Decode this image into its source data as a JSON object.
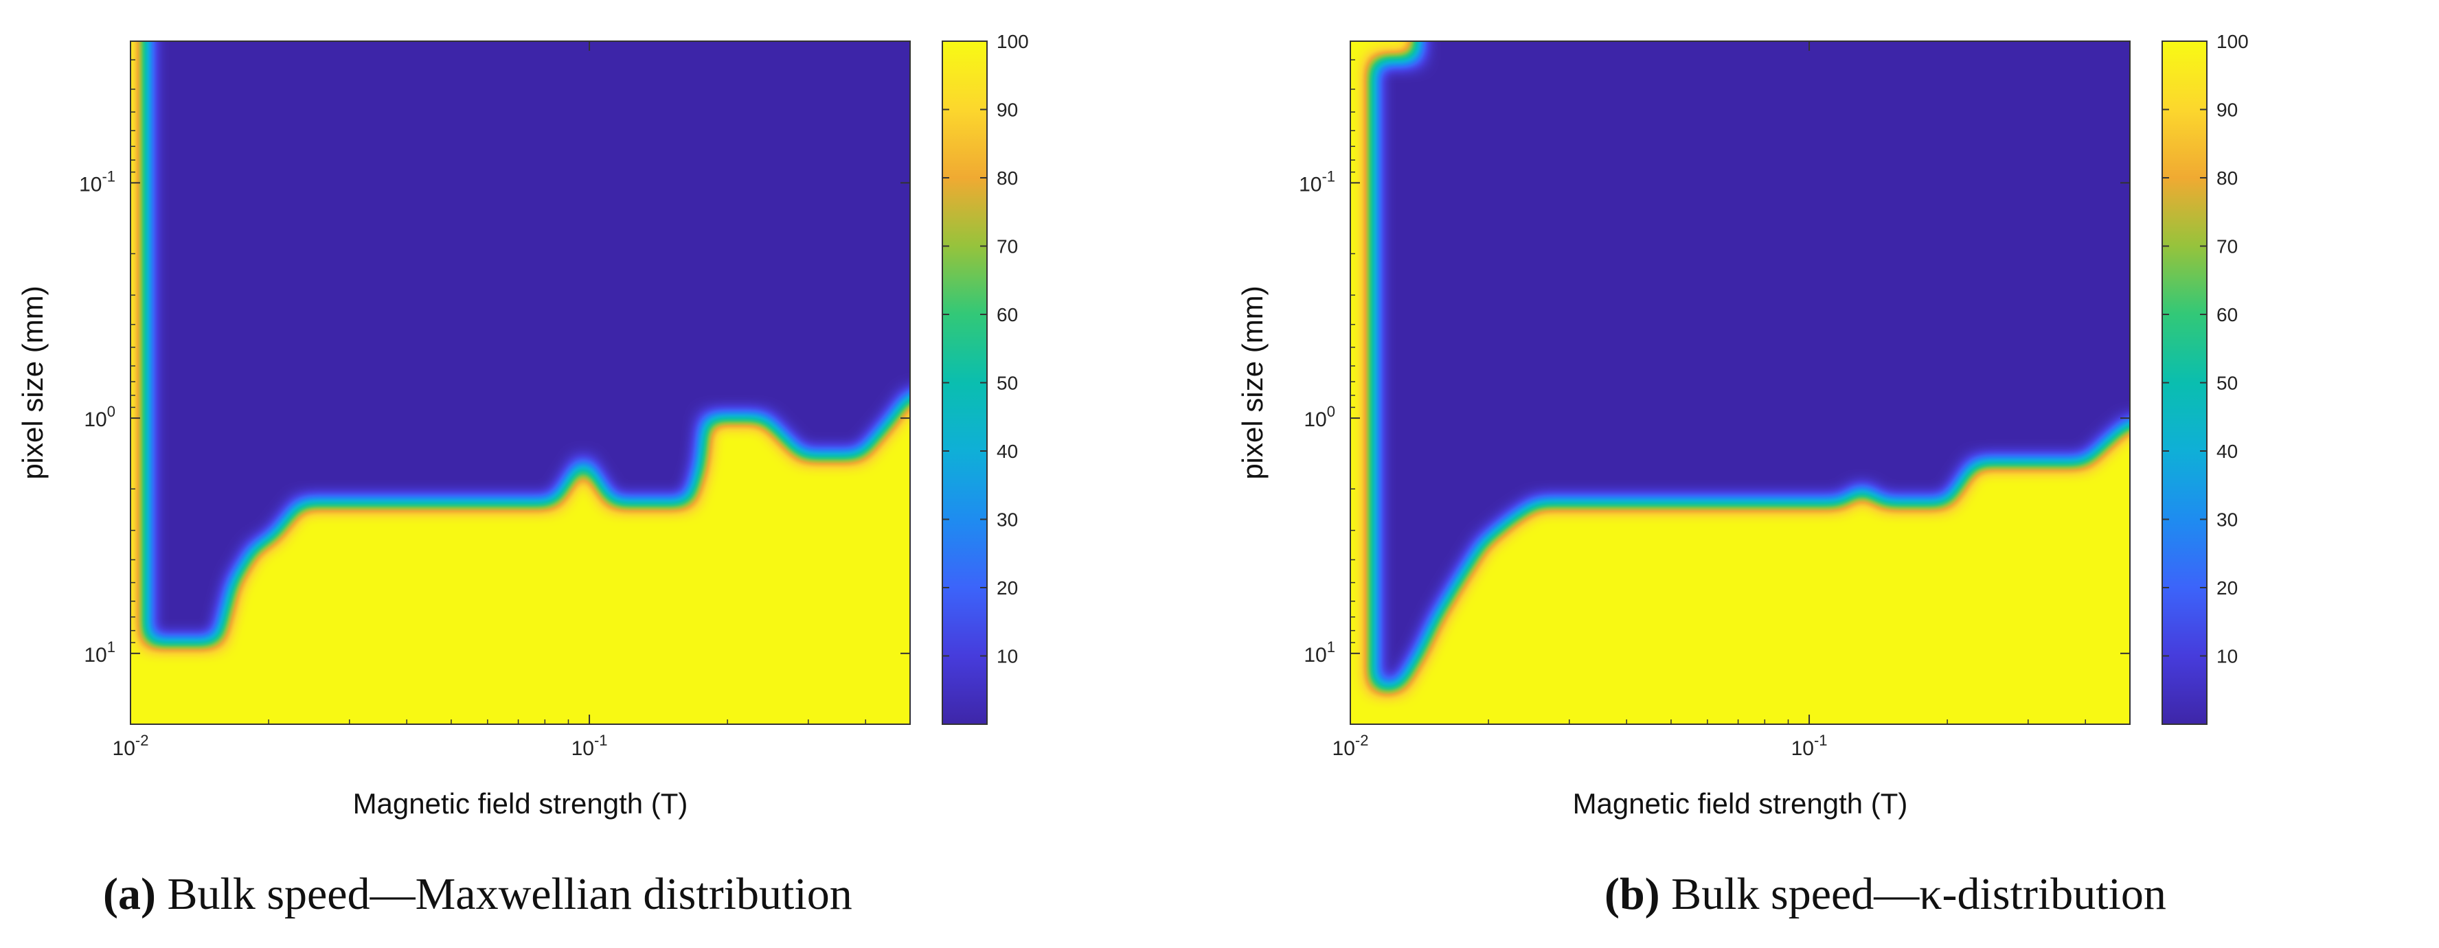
{
  "chart_data": [
    {
      "type": "heatmap",
      "panel_label": "(a)",
      "caption": "Bulk speed—Maxwellian distribution",
      "xlabel": "Magnetic field strength (T)",
      "ylabel": "pixel size (mm)",
      "xscale": "log",
      "yscale": "log",
      "yaxis_inverted": true,
      "xlim": [
        0.01,
        0.5
      ],
      "ylim": [
        0.025,
        20
      ],
      "x_ticks": [
        {
          "value": 0.01,
          "base": "10",
          "exp": "-2"
        },
        {
          "value": 0.1,
          "base": "10",
          "exp": "-1"
        }
      ],
      "y_ticks": [
        {
          "value": 0.1,
          "base": "10",
          "exp": "-1"
        },
        {
          "value": 1,
          "base": "10",
          "exp": "0"
        },
        {
          "value": 10,
          "base": "10",
          "exp": "1"
        }
      ],
      "colorbar": {
        "min": 0,
        "max": 100,
        "ticks": [
          10,
          20,
          30,
          40,
          50,
          60,
          70,
          80,
          90,
          100
        ],
        "colormap": "parula"
      },
      "region_high_value": 100,
      "region_low_value": 0,
      "boundary": {
        "description": "cells at or below the boundary pixel size (and the left edge column) equal 100, above equal 0",
        "left_edge_x": 0.0108,
        "points": [
          {
            "x": 0.0108,
            "y": 9.0
          },
          {
            "x": 0.0155,
            "y": 9.0
          },
          {
            "x": 0.0168,
            "y": 5.0
          },
          {
            "x": 0.0186,
            "y": 3.6
          },
          {
            "x": 0.0205,
            "y": 3.2
          },
          {
            "x": 0.0235,
            "y": 2.3
          },
          {
            "x": 0.084,
            "y": 2.3
          },
          {
            "x": 0.097,
            "y": 1.5
          },
          {
            "x": 0.112,
            "y": 2.3
          },
          {
            "x": 0.165,
            "y": 2.3
          },
          {
            "x": 0.175,
            "y": 1.6
          },
          {
            "x": 0.18,
            "y": 1.0
          },
          {
            "x": 0.24,
            "y": 1.0
          },
          {
            "x": 0.29,
            "y": 1.45
          },
          {
            "x": 0.39,
            "y": 1.45
          },
          {
            "x": 0.45,
            "y": 1.05
          },
          {
            "x": 0.5,
            "y": 0.8
          }
        ]
      }
    },
    {
      "type": "heatmap",
      "panel_label": "(b)",
      "caption": "Bulk speed—κ-distribution",
      "xlabel": "Magnetic field strength (T)",
      "ylabel": "pixel size (mm)",
      "xscale": "log",
      "yscale": "log",
      "yaxis_inverted": true,
      "xlim": [
        0.01,
        0.5
      ],
      "ylim": [
        0.025,
        20
      ],
      "x_ticks": [
        {
          "value": 0.01,
          "base": "10",
          "exp": "-2"
        },
        {
          "value": 0.1,
          "base": "10",
          "exp": "-1"
        }
      ],
      "y_ticks": [
        {
          "value": 0.1,
          "base": "10",
          "exp": "-1"
        },
        {
          "value": 1,
          "base": "10",
          "exp": "0"
        },
        {
          "value": 10,
          "base": "10",
          "exp": "1"
        }
      ],
      "colorbar": {
        "min": 0,
        "max": 100,
        "ticks": [
          10,
          20,
          30,
          40,
          50,
          60,
          70,
          80,
          90,
          100
        ],
        "colormap": "parula"
      },
      "region_high_value": 100,
      "region_low_value": 0,
      "boundary": {
        "description": "cells at or below the boundary pixel size (and the left edge column / top-left corner) equal 100, above equal 0",
        "left_edge_x": 0.0112,
        "top_left_corner": {
          "x": 0.014,
          "y": 0.03
        },
        "points": [
          {
            "x": 0.0112,
            "y": 14.0
          },
          {
            "x": 0.0128,
            "y": 14.0
          },
          {
            "x": 0.0142,
            "y": 10.0
          },
          {
            "x": 0.0155,
            "y": 7.0
          },
          {
            "x": 0.0172,
            "y": 5.0
          },
          {
            "x": 0.0195,
            "y": 3.4
          },
          {
            "x": 0.0225,
            "y": 2.7
          },
          {
            "x": 0.0255,
            "y": 2.3
          },
          {
            "x": 0.118,
            "y": 2.3
          },
          {
            "x": 0.13,
            "y": 2.0
          },
          {
            "x": 0.145,
            "y": 2.3
          },
          {
            "x": 0.2,
            "y": 2.3
          },
          {
            "x": 0.23,
            "y": 1.55
          },
          {
            "x": 0.4,
            "y": 1.55
          },
          {
            "x": 0.46,
            "y": 1.2
          },
          {
            "x": 0.5,
            "y": 1.05
          }
        ]
      }
    }
  ]
}
